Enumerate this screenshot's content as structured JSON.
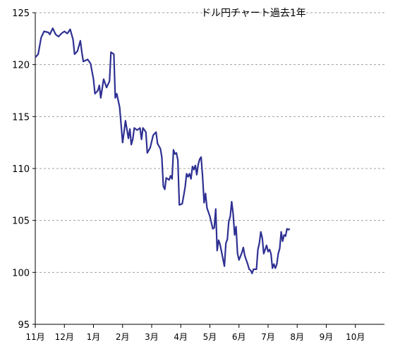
{
  "chart_data": {
    "type": "line",
    "title": "ドル円チャート過去1年",
    "xlabel": "",
    "ylabel": "",
    "ylim": [
      95,
      125
    ],
    "y_ticks": [
      95,
      100,
      105,
      110,
      115,
      120,
      125
    ],
    "grid": "horizontal dashed",
    "line_color": "#2e3092",
    "categories": [
      "11月",
      "12月",
      "1月",
      "2月",
      "3月",
      "4月",
      "5月",
      "6月",
      "7月",
      "8月",
      "9月",
      "10月"
    ],
    "series": [
      {
        "values": [
          [
            0.0,
            120.7
          ],
          [
            0.1,
            121.0
          ],
          [
            0.2,
            122.6
          ],
          [
            0.3,
            123.2
          ],
          [
            0.45,
            123.1
          ],
          [
            0.5,
            122.9
          ],
          [
            0.6,
            123.5
          ],
          [
            0.7,
            122.9
          ],
          [
            0.8,
            122.7
          ],
          [
            0.9,
            123.0
          ],
          [
            1.0,
            123.2
          ],
          [
            1.1,
            123.0
          ],
          [
            1.2,
            123.4
          ],
          [
            1.3,
            122.4
          ],
          [
            1.35,
            121.0
          ],
          [
            1.45,
            121.3
          ],
          [
            1.55,
            122.3
          ],
          [
            1.6,
            121.2
          ],
          [
            1.65,
            120.3
          ],
          [
            1.8,
            120.5
          ],
          [
            1.9,
            120.1
          ],
          [
            2.0,
            118.6
          ],
          [
            2.05,
            117.2
          ],
          [
            2.15,
            117.5
          ],
          [
            2.2,
            118.0
          ],
          [
            2.25,
            116.8
          ],
          [
            2.35,
            118.6
          ],
          [
            2.45,
            117.8
          ],
          [
            2.55,
            118.4
          ],
          [
            2.6,
            121.2
          ],
          [
            2.7,
            121.0
          ],
          [
            2.75,
            116.8
          ],
          [
            2.8,
            117.2
          ],
          [
            2.9,
            115.9
          ],
          [
            3.0,
            112.5
          ],
          [
            3.05,
            113.5
          ],
          [
            3.1,
            114.6
          ],
          [
            3.2,
            112.9
          ],
          [
            3.25,
            113.8
          ],
          [
            3.3,
            112.3
          ],
          [
            3.35,
            112.8
          ],
          [
            3.4,
            113.9
          ],
          [
            3.5,
            113.7
          ],
          [
            3.6,
            113.9
          ],
          [
            3.65,
            112.8
          ],
          [
            3.7,
            113.9
          ],
          [
            3.8,
            113.5
          ],
          [
            3.85,
            111.5
          ],
          [
            3.95,
            112.0
          ],
          [
            4.0,
            112.6
          ],
          [
            4.05,
            113.2
          ],
          [
            4.15,
            113.5
          ],
          [
            4.2,
            112.4
          ],
          [
            4.3,
            111.9
          ],
          [
            4.35,
            111.1
          ],
          [
            4.4,
            108.3
          ],
          [
            4.45,
            108.0
          ],
          [
            4.5,
            109.1
          ],
          [
            4.6,
            108.9
          ],
          [
            4.65,
            109.3
          ],
          [
            4.7,
            109.0
          ],
          [
            4.75,
            111.8
          ],
          [
            4.8,
            111.4
          ],
          [
            4.85,
            111.5
          ],
          [
            4.9,
            110.8
          ],
          [
            4.95,
            106.5
          ],
          [
            5.05,
            106.6
          ],
          [
            5.1,
            107.4
          ],
          [
            5.15,
            108.2
          ],
          [
            5.2,
            109.5
          ],
          [
            5.25,
            109.2
          ],
          [
            5.3,
            109.5
          ],
          [
            5.35,
            109.0
          ],
          [
            5.4,
            110.2
          ],
          [
            5.45,
            109.9
          ],
          [
            5.5,
            110.3
          ],
          [
            5.55,
            109.4
          ],
          [
            5.6,
            110.4
          ],
          [
            5.65,
            110.9
          ],
          [
            5.7,
            111.1
          ],
          [
            5.75,
            109.2
          ],
          [
            5.8,
            106.7
          ],
          [
            5.85,
            107.6
          ],
          [
            5.9,
            106.2
          ],
          [
            6.0,
            105.4
          ],
          [
            6.1,
            104.2
          ],
          [
            6.15,
            104.3
          ],
          [
            6.2,
            106.1
          ],
          [
            6.25,
            102.1
          ],
          [
            6.3,
            103.1
          ],
          [
            6.35,
            102.7
          ],
          [
            6.4,
            102.0
          ],
          [
            6.5,
            100.6
          ],
          [
            6.55,
            102.8
          ],
          [
            6.6,
            103.2
          ],
          [
            6.65,
            104.9
          ],
          [
            6.7,
            105.4
          ],
          [
            6.75,
            106.8
          ],
          [
            6.8,
            105.6
          ],
          [
            6.85,
            103.6
          ],
          [
            6.9,
            104.4
          ],
          [
            6.95,
            101.8
          ],
          [
            7.0,
            101.2
          ],
          [
            7.1,
            101.9
          ],
          [
            7.15,
            102.4
          ],
          [
            7.2,
            101.6
          ],
          [
            7.3,
            100.8
          ],
          [
            7.35,
            100.3
          ],
          [
            7.4,
            100.2
          ],
          [
            7.45,
            99.9
          ],
          [
            7.5,
            100.3
          ],
          [
            7.6,
            100.3
          ],
          [
            7.65,
            102.2
          ],
          [
            7.7,
            102.8
          ],
          [
            7.75,
            103.9
          ],
          [
            7.8,
            103.3
          ],
          [
            7.85,
            101.8
          ],
          [
            7.9,
            102.2
          ],
          [
            7.95,
            102.6
          ],
          [
            8.0,
            102.0
          ],
          [
            8.05,
            102.2
          ],
          [
            8.1,
            101.8
          ],
          [
            8.15,
            100.4
          ],
          [
            8.2,
            100.8
          ],
          [
            8.25,
            100.4
          ],
          [
            8.3,
            100.8
          ],
          [
            8.35,
            101.8
          ],
          [
            8.4,
            102.3
          ],
          [
            8.45,
            103.9
          ],
          [
            8.5,
            103.0
          ],
          [
            8.55,
            103.6
          ],
          [
            8.6,
            103.5
          ],
          [
            8.65,
            104.2
          ],
          [
            8.7,
            104.1
          ],
          [
            8.75,
            104.2
          ]
        ]
      }
    ]
  }
}
